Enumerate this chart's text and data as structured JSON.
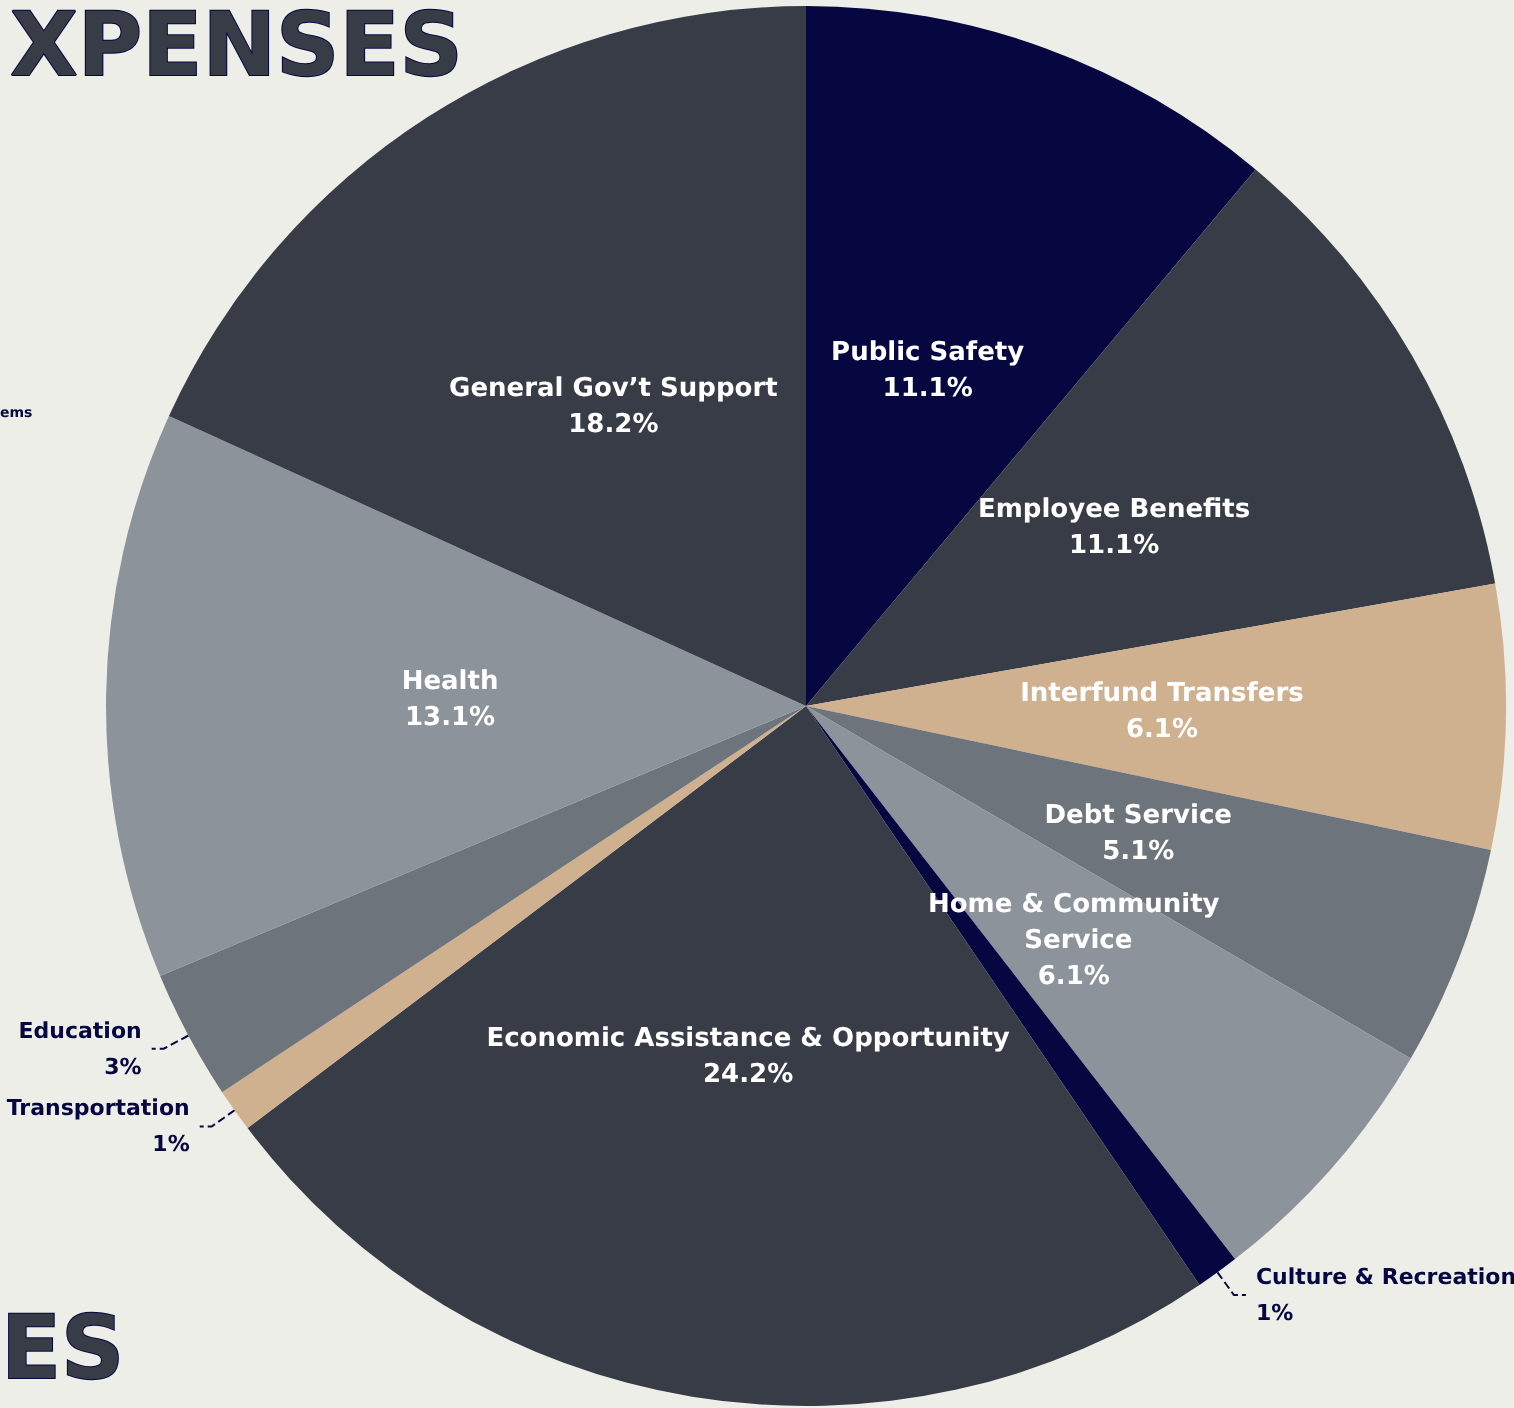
{
  "chart_data": {
    "type": "pie",
    "title": "XPENSES",
    "annotations": [
      "ems",
      "ES"
    ],
    "categories": [
      "Public Safety",
      "Employee Benefits",
      "Interfund Transfers",
      "Debt Service",
      "Home & Community Service",
      "Culture & Recreation",
      "Economic Assistance & Opportunity",
      "Transportation",
      "Education",
      "Health",
      "General Gov’t Support"
    ],
    "values": [
      11.1,
      11.1,
      6.1,
      5.1,
      6.1,
      1,
      24.2,
      1,
      3,
      13.1,
      18.2
    ],
    "value_labels": [
      "11.1%",
      "11.1%",
      "6.1%",
      "5.1%",
      "6.1%",
      "1%",
      "24.2%",
      "1%",
      "3%",
      "13.1%",
      "18.2%"
    ],
    "colors": [
      "#060640",
      "#373c47",
      "#cfb08f",
      "#6e747c",
      "#8c939b",
      "#060640",
      "#373c47",
      "#cfb08f",
      "#6e747c",
      "#8c939b",
      "#373c47"
    ],
    "legend": false
  }
}
